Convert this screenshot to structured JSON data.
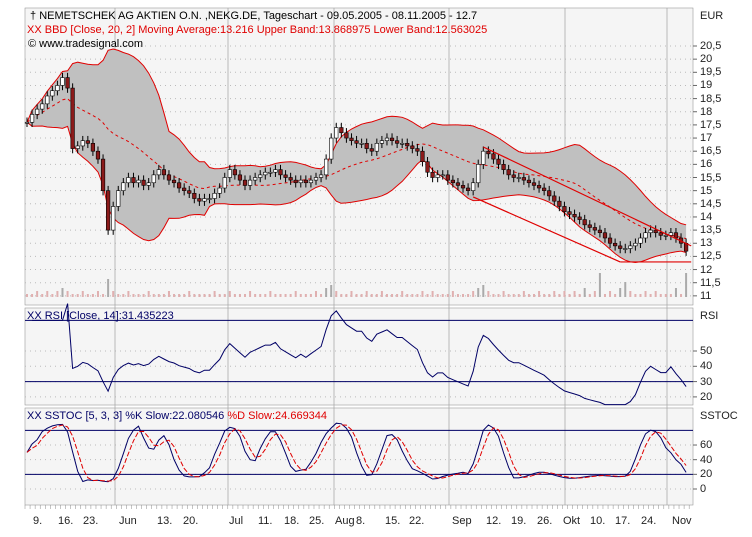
{
  "header": {
    "title": "NEMETSCHEK AG AKTIEN O.N. ,NEKG.DE, Tageschart - 09.05.2005 - 08.11.2005 - 12.7",
    "bbd_label": "XX BBD [Close, 20, 2] Moving Average:13.216 Upper Band:13.868975 Lower Band:12.563025",
    "copyright": "© www.tradesignal.com",
    "rsi_label": "XX RSI [Close, 14]:31.435223",
    "sstoc_label_k": "XX SSTOC [5, 3, 3] %K Slow:22.080546",
    "sstoc_label_d": "%D Slow:24.669344"
  },
  "colors": {
    "band_fill": "#c0c0c0",
    "band_line": "#e00000",
    "ma": "#e00000",
    "rsi": "#000066",
    "k": "#000066",
    "d": "#e00000",
    "candle_down": "#8b1a1a",
    "candle_up": "#ffffff",
    "trend": "#e00000",
    "panel_bg": "#f5f5f5"
  },
  "chart_data": [
    {
      "type": "candlestick",
      "ylabel": "EUR",
      "ylim": [
        11,
        20.5
      ],
      "yticks": [
        "20,5",
        "20",
        "19,5",
        "19",
        "18,5",
        "18",
        "17,5",
        "17",
        "16,5",
        "16",
        "15,5",
        "15",
        "14,5",
        "14",
        "13,5",
        "13",
        "12,5",
        "12",
        "11,5",
        "11"
      ],
      "xticks": [
        "9.",
        "16.",
        "23.",
        "Jun",
        "13.",
        "20.",
        "Jul",
        "11.",
        "18.",
        "25.",
        "Aug",
        "8.",
        "15.",
        "22.",
        "Sep",
        "12.",
        "19.",
        "26.",
        "Okt",
        "10.",
        "17.",
        "24.",
        "Nov"
      ],
      "close": [
        17.6,
        17.9,
        18.1,
        18.3,
        18.6,
        18.8,
        19.0,
        19.3,
        18.9,
        16.6,
        16.7,
        16.9,
        16.8,
        16.5,
        16.2,
        15.0,
        13.5,
        14.4,
        15.0,
        15.3,
        15.5,
        15.3,
        15.4,
        15.2,
        15.3,
        15.6,
        15.8,
        15.6,
        15.4,
        15.3,
        15.1,
        15.0,
        14.9,
        14.7,
        14.6,
        14.7,
        14.7,
        14.9,
        15.1,
        15.5,
        15.8,
        15.6,
        15.4,
        15.2,
        15.4,
        15.5,
        15.6,
        15.7,
        15.7,
        15.8,
        15.6,
        15.5,
        15.4,
        15.3,
        15.4,
        15.3,
        15.4,
        15.5,
        15.6,
        16.2,
        17.0,
        17.4,
        17.2,
        17.0,
        16.9,
        16.8,
        16.8,
        16.6,
        16.5,
        16.8,
        16.9,
        17.0,
        16.9,
        16.8,
        16.8,
        16.7,
        16.6,
        16.5,
        16.1,
        15.7,
        15.5,
        15.6,
        15.6,
        15.4,
        15.3,
        15.2,
        15.1,
        15.0,
        15.3,
        16.0,
        16.5,
        16.4,
        16.2,
        16.0,
        15.8,
        15.6,
        15.5,
        15.5,
        15.4,
        15.3,
        15.2,
        15.1,
        15.0,
        14.8,
        14.6,
        14.4,
        14.2,
        14.1,
        14.0,
        13.9,
        13.7,
        13.6,
        13.5,
        13.4,
        13.2,
        13.0,
        12.9,
        12.8,
        12.8,
        12.9,
        13.0,
        13.2,
        13.4,
        13.5,
        13.4,
        13.3,
        13.3,
        13.4,
        13.2,
        13.0,
        12.7
      ],
      "volume": [
        1,
        1,
        2,
        1,
        2,
        1,
        2,
        3,
        2,
        1,
        1,
        2,
        1,
        1,
        2,
        1,
        6,
        2,
        1,
        1,
        2,
        1,
        1,
        1,
        2,
        1,
        1,
        1,
        2,
        1,
        1,
        1,
        2,
        1,
        1,
        1,
        1,
        2,
        1,
        1,
        2,
        1,
        1,
        1,
        2,
        1,
        1,
        1,
        2,
        1,
        1,
        1,
        1,
        2,
        1,
        1,
        1,
        2,
        1,
        3,
        4,
        2,
        1,
        1,
        2,
        1,
        1,
        2,
        1,
        1,
        2,
        1,
        1,
        1,
        2,
        1,
        1,
        1,
        2,
        1,
        2,
        1,
        1,
        1,
        2,
        1,
        1,
        1,
        2,
        3,
        4,
        2,
        1,
        1,
        2,
        1,
        1,
        1,
        2,
        1,
        1,
        2,
        1,
        1,
        2,
        1,
        2,
        1,
        2,
        1,
        3,
        1,
        2,
        8,
        1,
        2,
        1,
        3,
        5,
        2,
        1,
        1,
        2,
        1,
        2,
        1,
        1,
        1,
        3,
        1,
        8
      ],
      "bollinger": {
        "period": 20,
        "stddev": 2
      },
      "trendlines": [
        {
          "from": [
            90,
            16.66
          ],
          "to": [
            131,
            12.9
          ]
        },
        {
          "from": [
            88,
            14.76
          ],
          "to": [
            117,
            12.29
          ]
        },
        {
          "from": [
            117,
            12.29
          ],
          "to": [
            131,
            12.29
          ]
        }
      ]
    },
    {
      "type": "line",
      "name": "RSI",
      "ylabel": "RSI",
      "yticks": [
        "50",
        "40",
        "30",
        "20"
      ],
      "levels": [
        70,
        30
      ],
      "period": 14
    },
    {
      "type": "line",
      "name": "SSTOC",
      "ylabel": "SSTOC",
      "yticks": [
        "60",
        "40",
        "20",
        "0"
      ],
      "levels": [
        80,
        20
      ],
      "params": [
        5,
        3,
        3
      ]
    }
  ]
}
